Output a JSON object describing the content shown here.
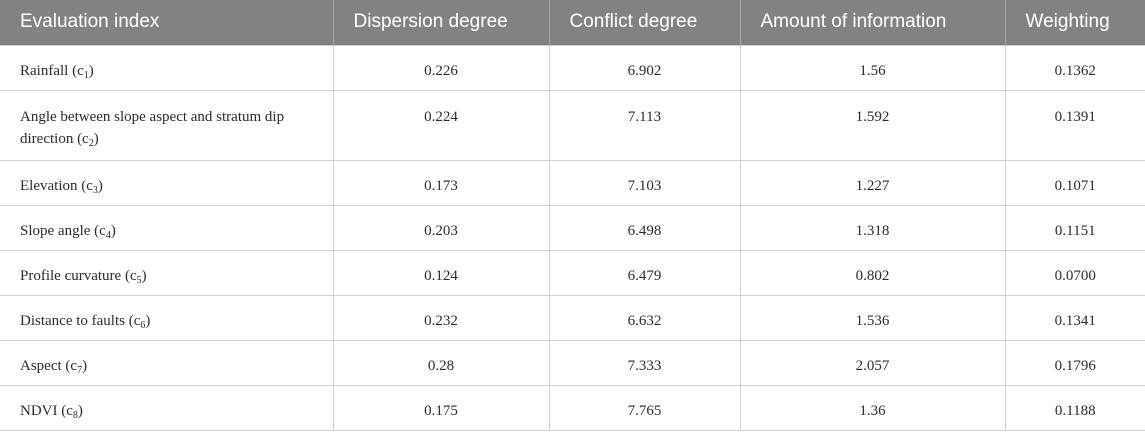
{
  "table": {
    "header": [
      "Evaluation index",
      "Dispersion degree",
      "Conflict degree",
      "Amount of information",
      "Weighting"
    ],
    "rows": [
      [
        {
          "name": "Rainfall (c",
          "sub": "1",
          "end": ")"
        },
        "0.226",
        "6.902",
        "1.56",
        "0.1362"
      ],
      [
        {
          "name": "Angle between slope aspect and stratum dip direction (c",
          "sub": "2",
          "end": ")"
        },
        "0.224",
        "7.113",
        "1.592",
        "0.1391"
      ],
      [
        {
          "name": "Elevation (c",
          "sub": "3",
          "end": ")"
        },
        "0.173",
        "7.103",
        "1.227",
        "0.1071"
      ],
      [
        {
          "name": "Slope angle (c",
          "sub": "4",
          "end": ")"
        },
        "0.203",
        "6.498",
        "1.318",
        "0.1151"
      ],
      [
        {
          "name": "Profile curvature (c",
          "sub": "5",
          "end": ")"
        },
        "0.124",
        "6.479",
        "0.802",
        "0.0700"
      ],
      [
        {
          "name": "Distance to faults (c",
          "sub": "6",
          "end": ")"
        },
        "0.232",
        "6.632",
        "1.536",
        "0.1341"
      ],
      [
        {
          "name": "Aspect (c",
          "sub": "7",
          "end": ")"
        },
        "0.28",
        "7.333",
        "2.057",
        "0.1796"
      ],
      [
        {
          "name": "NDVI (c",
          "sub": "8",
          "end": ")"
        },
        "0.175",
        "7.765",
        "1.36",
        "0.1188"
      ]
    ]
  }
}
